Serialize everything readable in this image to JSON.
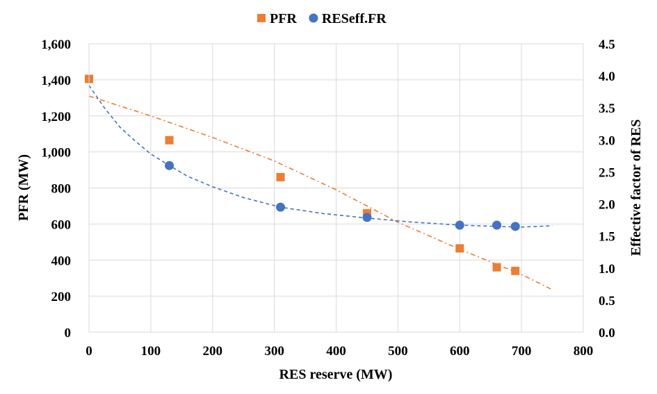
{
  "chart_data": {
    "type": "scatter",
    "xlabel": "RES reserve (MW)",
    "ylabel_left": "PFR (MW)",
    "ylabel_right": "Effective  factor of RES",
    "xlim": [
      0,
      800
    ],
    "xticks": [
      0,
      100,
      200,
      300,
      400,
      500,
      600,
      700,
      800
    ],
    "xtick_labels": [
      "0",
      "100",
      "200",
      "300",
      "400",
      "500",
      "600",
      "700",
      "800"
    ],
    "ylim_left": [
      0,
      1600
    ],
    "yticks_left": [
      0,
      200,
      400,
      600,
      800,
      1000,
      1200,
      1400,
      1600
    ],
    "ytick_labels_left": [
      "0",
      "200",
      "400",
      "600",
      "800",
      "1,000",
      "1,200",
      "1,400",
      "1,600"
    ],
    "ylim_right": [
      0,
      4.5
    ],
    "yticks_right": [
      0,
      0.5,
      1,
      1.5,
      2,
      2.5,
      3,
      3.5,
      4,
      4.5
    ],
    "ytick_labels_right": [
      "0.0",
      "0.5",
      "1.0",
      "1.5",
      "2.0",
      "2.5",
      "3.0",
      "3.5",
      "4.0",
      "4.5"
    ],
    "grid": true,
    "legend_position": "top-center",
    "series": [
      {
        "name": "PFR",
        "axis": "left",
        "marker": "square",
        "color": "#ED7D31",
        "points": [
          {
            "x": 0,
            "y": 1405
          },
          {
            "x": 130,
            "y": 1065
          },
          {
            "x": 310,
            "y": 860
          },
          {
            "x": 450,
            "y": 660
          },
          {
            "x": 600,
            "y": 465
          },
          {
            "x": 660,
            "y": 360
          },
          {
            "x": 690,
            "y": 340
          }
        ],
        "trendline": {
          "style": "dash-dot",
          "points": [
            {
              "x": 0,
              "y": 1310
            },
            {
              "x": 100,
              "y": 1200
            },
            {
              "x": 200,
              "y": 1080
            },
            {
              "x": 300,
              "y": 950
            },
            {
              "x": 400,
              "y": 790
            },
            {
              "x": 500,
              "y": 610
            },
            {
              "x": 600,
              "y": 460
            },
            {
              "x": 700,
              "y": 320
            },
            {
              "x": 750,
              "y": 235
            }
          ]
        }
      },
      {
        "name": "RESeff.FR",
        "axis": "right",
        "marker": "circle",
        "color": "#4472C4",
        "points": [
          {
            "x": 130,
            "y": 2.6
          },
          {
            "x": 310,
            "y": 1.95
          },
          {
            "x": 450,
            "y": 1.79
          },
          {
            "x": 600,
            "y": 1.67
          },
          {
            "x": 660,
            "y": 1.67
          },
          {
            "x": 690,
            "y": 1.65
          }
        ],
        "trendline": {
          "style": "dashed",
          "points": [
            {
              "x": 0,
              "y": 3.85
            },
            {
              "x": 25,
              "y": 3.5
            },
            {
              "x": 50,
              "y": 3.2
            },
            {
              "x": 75,
              "y": 2.98
            },
            {
              "x": 100,
              "y": 2.78
            },
            {
              "x": 130,
              "y": 2.6
            },
            {
              "x": 160,
              "y": 2.43
            },
            {
              "x": 200,
              "y": 2.27
            },
            {
              "x": 250,
              "y": 2.1
            },
            {
              "x": 310,
              "y": 1.95
            },
            {
              "x": 380,
              "y": 1.85
            },
            {
              "x": 450,
              "y": 1.78
            },
            {
              "x": 520,
              "y": 1.72
            },
            {
              "x": 600,
              "y": 1.67
            },
            {
              "x": 660,
              "y": 1.65
            },
            {
              "x": 700,
              "y": 1.64
            },
            {
              "x": 750,
              "y": 1.66
            }
          ]
        }
      }
    ]
  }
}
